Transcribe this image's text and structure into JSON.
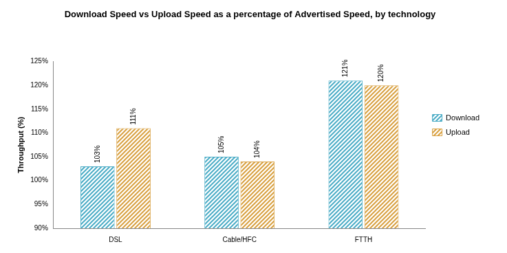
{
  "chart_data": {
    "type": "bar",
    "title": "Download Speed vs Upload Speed as a percentage of Advertised Speed, by technology",
    "y_label": "Throughput (%)",
    "categories": [
      "DSL",
      "Cable/HFC",
      "FTTH"
    ],
    "series": [
      {
        "name": "Download",
        "color": "#4bacc6",
        "values": [
          103,
          105,
          121
        ],
        "value_labels": [
          "103%",
          "105%",
          "121%"
        ]
      },
      {
        "name": "Upload",
        "color": "#d8a040",
        "values": [
          111,
          104,
          120
        ],
        "value_labels": [
          "111%",
          "104%",
          "120%"
        ]
      }
    ],
    "ylim": [
      90,
      125
    ],
    "yticks": [
      {
        "value": 90,
        "label": "90%"
      },
      {
        "value": 95,
        "label": "95%"
      },
      {
        "value": 100,
        "label": "100%"
      },
      {
        "value": 105,
        "label": "105%"
      },
      {
        "value": 110,
        "label": "110%"
      },
      {
        "value": 115,
        "label": "115%"
      },
      {
        "value": 120,
        "label": "120%"
      },
      {
        "value": 125,
        "label": "125%"
      }
    ],
    "grid": false,
    "legend": "right",
    "data_labels": true
  }
}
